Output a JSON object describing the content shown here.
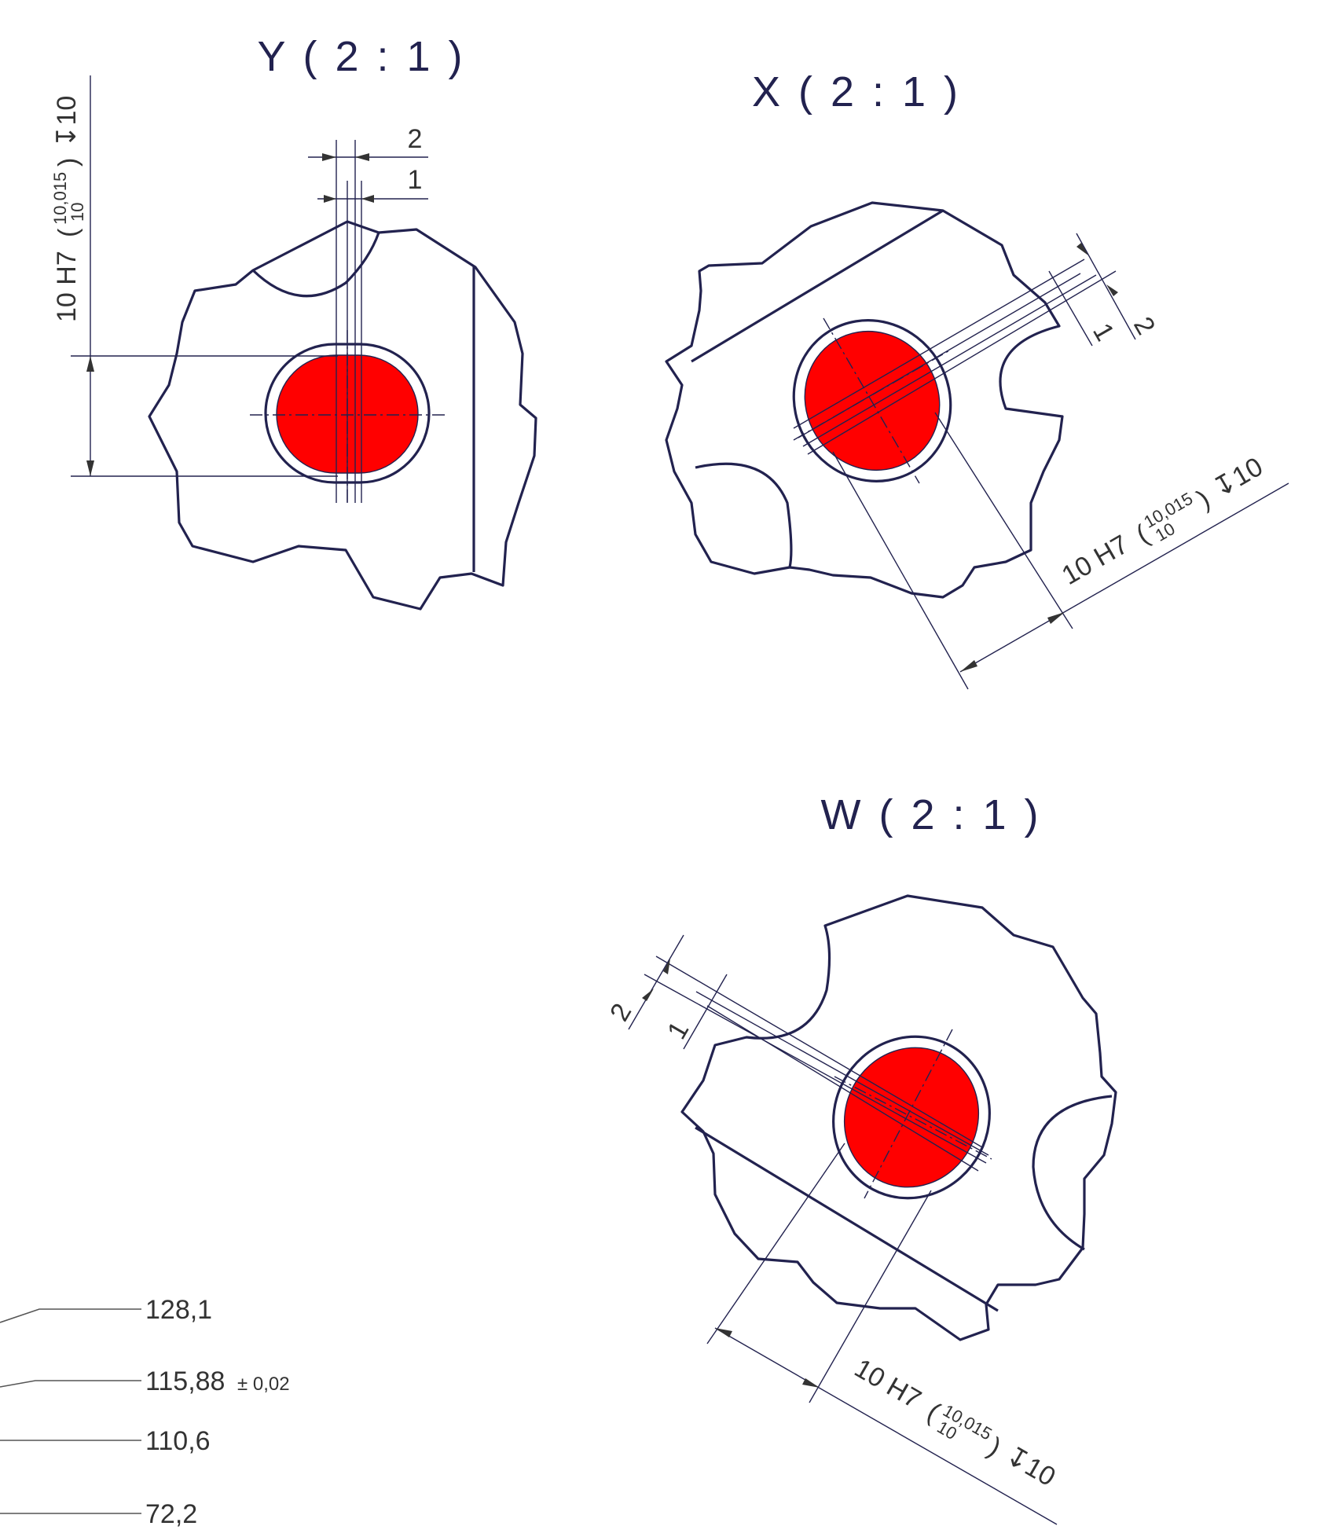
{
  "views": {
    "y": {
      "title": "Y ( 2 : 1 )"
    },
    "x": {
      "title": "X ( 2 : 1 )"
    },
    "w": {
      "title": "W ( 2 : 1 )"
    }
  },
  "dimensions": {
    "fit": "10 H7",
    "tol_upper": "10,015",
    "tol_lower": "10",
    "depth": "↧10",
    "offset_2": "2",
    "offset_1": "1"
  },
  "levels": {
    "l1": "128,1",
    "l2": "115,88",
    "l2_tol": "± 0,02",
    "l3": "110,6",
    "l4": "72,2"
  },
  "colors": {
    "outline": "#22224f",
    "hole_fill": "#ff0000",
    "dimension": "#333333"
  }
}
